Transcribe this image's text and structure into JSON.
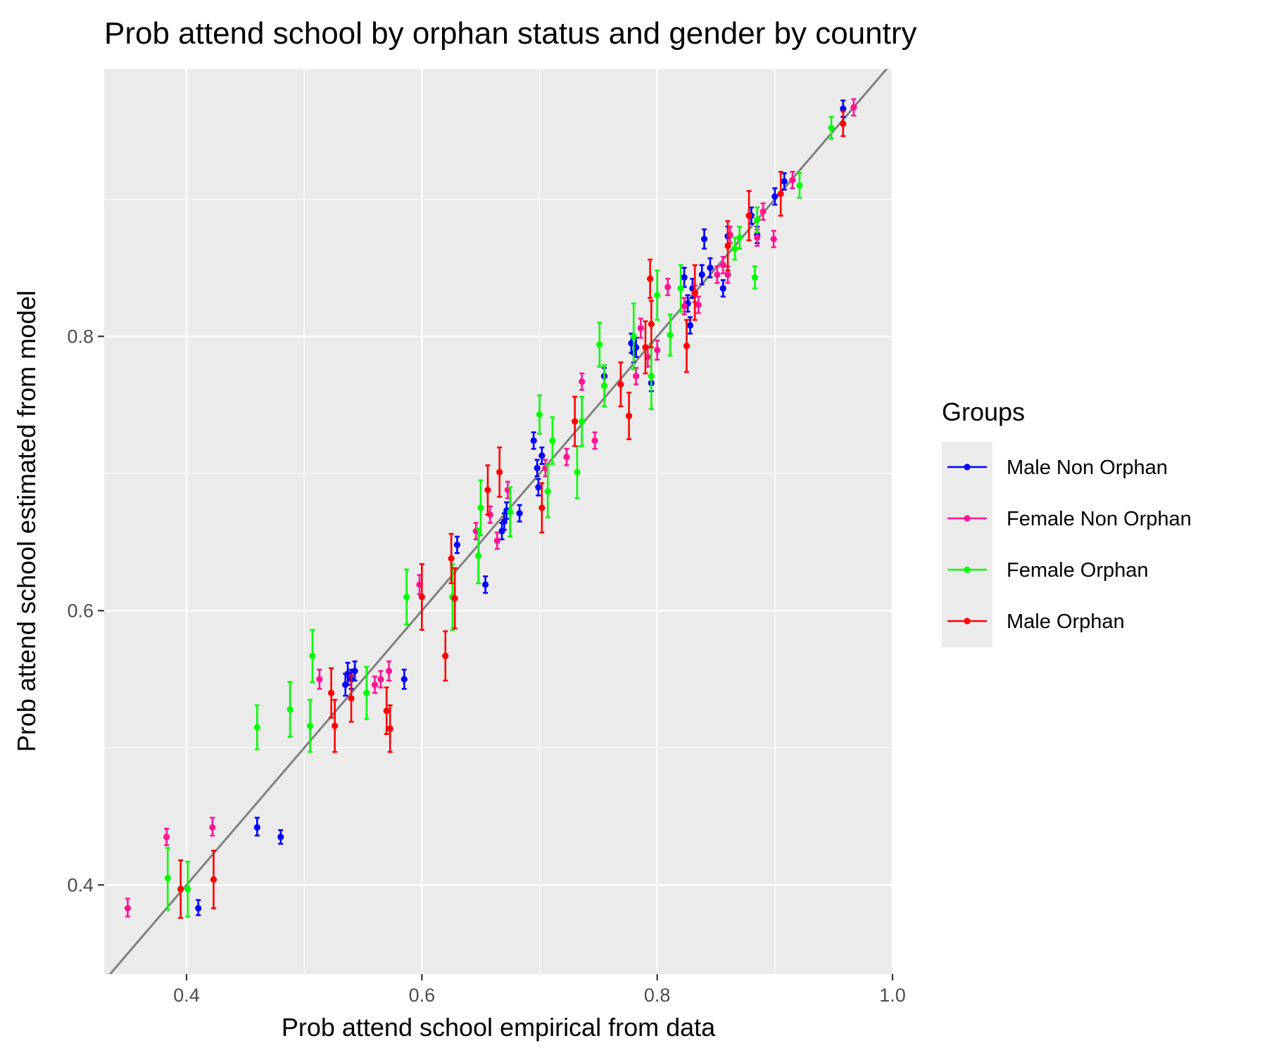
{
  "chart_data": {
    "type": "scatter",
    "title": "Prob attend school by orphan status and gender by country",
    "xlabel": "Prob attend school empirical from data",
    "ylabel": "Prob attend school estimated from model",
    "xlim": [
      0.33,
      1.0
    ],
    "ylim": [
      0.335,
      0.995
    ],
    "x_ticks": [
      0.4,
      0.6,
      0.8,
      1.0
    ],
    "x_tick_labels": [
      "0.4",
      "0.6",
      "0.8",
      "1.0"
    ],
    "y_ticks": [
      0.4,
      0.6,
      0.8
    ],
    "y_tick_labels": [
      "0.4",
      "0.6",
      "0.8"
    ],
    "grid": true,
    "reference_line": {
      "slope": 1,
      "intercept": 0,
      "color": "#808080"
    },
    "legend": {
      "title": "Groups",
      "position": "right"
    },
    "series": [
      {
        "name": "Male Non Orphan",
        "color": "#0000ff",
        "points": [
          [
            0.41,
            0.383,
            0.378,
            0.389
          ],
          [
            0.46,
            0.442,
            0.436,
            0.449
          ],
          [
            0.48,
            0.435,
            0.43,
            0.44
          ],
          [
            0.535,
            0.546,
            0.538,
            0.554
          ],
          [
            0.537,
            0.554,
            0.546,
            0.562
          ],
          [
            0.54,
            0.55,
            0.543,
            0.557
          ],
          [
            0.543,
            0.556,
            0.549,
            0.563
          ],
          [
            0.585,
            0.55,
            0.543,
            0.557
          ],
          [
            0.63,
            0.648,
            0.642,
            0.654
          ],
          [
            0.654,
            0.619,
            0.613,
            0.625
          ],
          [
            0.668,
            0.658,
            0.652,
            0.664
          ],
          [
            0.67,
            0.665,
            0.659,
            0.671
          ],
          [
            0.672,
            0.673,
            0.667,
            0.679
          ],
          [
            0.683,
            0.671,
            0.665,
            0.677
          ],
          [
            0.695,
            0.724,
            0.718,
            0.73
          ],
          [
            0.698,
            0.704,
            0.698,
            0.71
          ],
          [
            0.699,
            0.69,
            0.684,
            0.696
          ],
          [
            0.702,
            0.713,
            0.707,
            0.719
          ],
          [
            0.755,
            0.771,
            0.765,
            0.777
          ],
          [
            0.778,
            0.795,
            0.788,
            0.802
          ],
          [
            0.78,
            0.788,
            0.781,
            0.795
          ],
          [
            0.782,
            0.792,
            0.785,
            0.799
          ],
          [
            0.795,
            0.766,
            0.76,
            0.772
          ],
          [
            0.823,
            0.843,
            0.836,
            0.85
          ],
          [
            0.826,
            0.824,
            0.818,
            0.83
          ],
          [
            0.828,
            0.808,
            0.802,
            0.814
          ],
          [
            0.83,
            0.835,
            0.828,
            0.842
          ],
          [
            0.838,
            0.845,
            0.838,
            0.852
          ],
          [
            0.84,
            0.871,
            0.864,
            0.878
          ],
          [
            0.845,
            0.85,
            0.843,
            0.857
          ],
          [
            0.856,
            0.835,
            0.829,
            0.841
          ],
          [
            0.86,
            0.873,
            0.866,
            0.88
          ],
          [
            0.88,
            0.888,
            0.882,
            0.894
          ],
          [
            0.885,
            0.874,
            0.868,
            0.88
          ],
          [
            0.9,
            0.902,
            0.896,
            0.908
          ],
          [
            0.908,
            0.913,
            0.907,
            0.919
          ],
          [
            0.958,
            0.966,
            0.96,
            0.972
          ]
        ]
      },
      {
        "name": "Female Non Orphan",
        "color": "#ff1493",
        "points": [
          [
            0.35,
            0.383,
            0.377,
            0.39
          ],
          [
            0.383,
            0.435,
            0.429,
            0.441
          ],
          [
            0.422,
            0.442,
            0.436,
            0.449
          ],
          [
            0.513,
            0.55,
            0.543,
            0.557
          ],
          [
            0.56,
            0.546,
            0.54,
            0.552
          ],
          [
            0.565,
            0.55,
            0.544,
            0.556
          ],
          [
            0.572,
            0.556,
            0.549,
            0.563
          ],
          [
            0.598,
            0.619,
            0.612,
            0.626
          ],
          [
            0.646,
            0.658,
            0.652,
            0.664
          ],
          [
            0.658,
            0.67,
            0.664,
            0.676
          ],
          [
            0.664,
            0.651,
            0.645,
            0.657
          ],
          [
            0.673,
            0.688,
            0.682,
            0.694
          ],
          [
            0.705,
            0.704,
            0.698,
            0.71
          ],
          [
            0.723,
            0.712,
            0.706,
            0.718
          ],
          [
            0.736,
            0.767,
            0.761,
            0.773
          ],
          [
            0.747,
            0.724,
            0.718,
            0.73
          ],
          [
            0.782,
            0.771,
            0.765,
            0.777
          ],
          [
            0.786,
            0.806,
            0.799,
            0.813
          ],
          [
            0.792,
            0.785,
            0.778,
            0.792
          ],
          [
            0.8,
            0.79,
            0.783,
            0.797
          ],
          [
            0.809,
            0.836,
            0.83,
            0.842
          ],
          [
            0.823,
            0.822,
            0.816,
            0.828
          ],
          [
            0.832,
            0.831,
            0.825,
            0.837
          ],
          [
            0.835,
            0.823,
            0.817,
            0.829
          ],
          [
            0.851,
            0.845,
            0.839,
            0.851
          ],
          [
            0.856,
            0.852,
            0.846,
            0.858
          ],
          [
            0.86,
            0.845,
            0.839,
            0.851
          ],
          [
            0.862,
            0.874,
            0.868,
            0.88
          ],
          [
            0.885,
            0.872,
            0.866,
            0.878
          ],
          [
            0.89,
            0.891,
            0.885,
            0.897
          ],
          [
            0.899,
            0.871,
            0.865,
            0.877
          ],
          [
            0.915,
            0.914,
            0.908,
            0.92
          ],
          [
            0.967,
            0.967,
            0.961,
            0.973
          ]
        ]
      },
      {
        "name": "Female Orphan",
        "color": "#00ff00",
        "points": [
          [
            0.384,
            0.405,
            0.382,
            0.427
          ],
          [
            0.401,
            0.397,
            0.377,
            0.417
          ],
          [
            0.46,
            0.515,
            0.499,
            0.531
          ],
          [
            0.488,
            0.528,
            0.508,
            0.548
          ],
          [
            0.505,
            0.516,
            0.497,
            0.535
          ],
          [
            0.507,
            0.567,
            0.548,
            0.586
          ],
          [
            0.553,
            0.54,
            0.521,
            0.559
          ],
          [
            0.587,
            0.61,
            0.59,
            0.63
          ],
          [
            0.626,
            0.61,
            0.586,
            0.634
          ],
          [
            0.648,
            0.64,
            0.62,
            0.66
          ],
          [
            0.65,
            0.675,
            0.655,
            0.695
          ],
          [
            0.675,
            0.672,
            0.654,
            0.69
          ],
          [
            0.7,
            0.743,
            0.729,
            0.757
          ],
          [
            0.707,
            0.687,
            0.668,
            0.706
          ],
          [
            0.711,
            0.724,
            0.707,
            0.741
          ],
          [
            0.732,
            0.701,
            0.682,
            0.72
          ],
          [
            0.736,
            0.738,
            0.72,
            0.756
          ],
          [
            0.751,
            0.794,
            0.778,
            0.81
          ],
          [
            0.755,
            0.764,
            0.749,
            0.779
          ],
          [
            0.78,
            0.8,
            0.776,
            0.824
          ],
          [
            0.795,
            0.771,
            0.747,
            0.795
          ],
          [
            0.8,
            0.83,
            0.812,
            0.848
          ],
          [
            0.811,
            0.801,
            0.786,
            0.816
          ],
          [
            0.82,
            0.835,
            0.818,
            0.852
          ],
          [
            0.866,
            0.864,
            0.856,
            0.872
          ],
          [
            0.87,
            0.872,
            0.864,
            0.88
          ],
          [
            0.883,
            0.843,
            0.835,
            0.851
          ],
          [
            0.885,
            0.885,
            0.876,
            0.894
          ],
          [
            0.921,
            0.91,
            0.901,
            0.919
          ],
          [
            0.948,
            0.952,
            0.944,
            0.96
          ]
        ]
      },
      {
        "name": "Male Orphan",
        "color": "#ff0000",
        "points": [
          [
            0.395,
            0.397,
            0.376,
            0.418
          ],
          [
            0.423,
            0.404,
            0.383,
            0.425
          ],
          [
            0.523,
            0.54,
            0.522,
            0.558
          ],
          [
            0.526,
            0.516,
            0.497,
            0.535
          ],
          [
            0.54,
            0.536,
            0.519,
            0.553
          ],
          [
            0.57,
            0.527,
            0.51,
            0.544
          ],
          [
            0.573,
            0.514,
            0.497,
            0.531
          ],
          [
            0.6,
            0.61,
            0.586,
            0.634
          ],
          [
            0.62,
            0.567,
            0.549,
            0.585
          ],
          [
            0.625,
            0.638,
            0.62,
            0.656
          ],
          [
            0.628,
            0.609,
            0.587,
            0.631
          ],
          [
            0.656,
            0.688,
            0.67,
            0.706
          ],
          [
            0.666,
            0.701,
            0.683,
            0.719
          ],
          [
            0.702,
            0.675,
            0.657,
            0.693
          ],
          [
            0.73,
            0.738,
            0.72,
            0.756
          ],
          [
            0.769,
            0.765,
            0.749,
            0.781
          ],
          [
            0.776,
            0.742,
            0.725,
            0.759
          ],
          [
            0.79,
            0.792,
            0.773,
            0.811
          ],
          [
            0.794,
            0.842,
            0.828,
            0.856
          ],
          [
            0.795,
            0.809,
            0.792,
            0.826
          ],
          [
            0.825,
            0.793,
            0.774,
            0.812
          ],
          [
            0.832,
            0.832,
            0.812,
            0.852
          ],
          [
            0.86,
            0.866,
            0.848,
            0.884
          ],
          [
            0.878,
            0.888,
            0.87,
            0.906
          ],
          [
            0.905,
            0.904,
            0.888,
            0.92
          ],
          [
            0.958,
            0.955,
            0.946,
            0.964
          ]
        ]
      }
    ]
  }
}
